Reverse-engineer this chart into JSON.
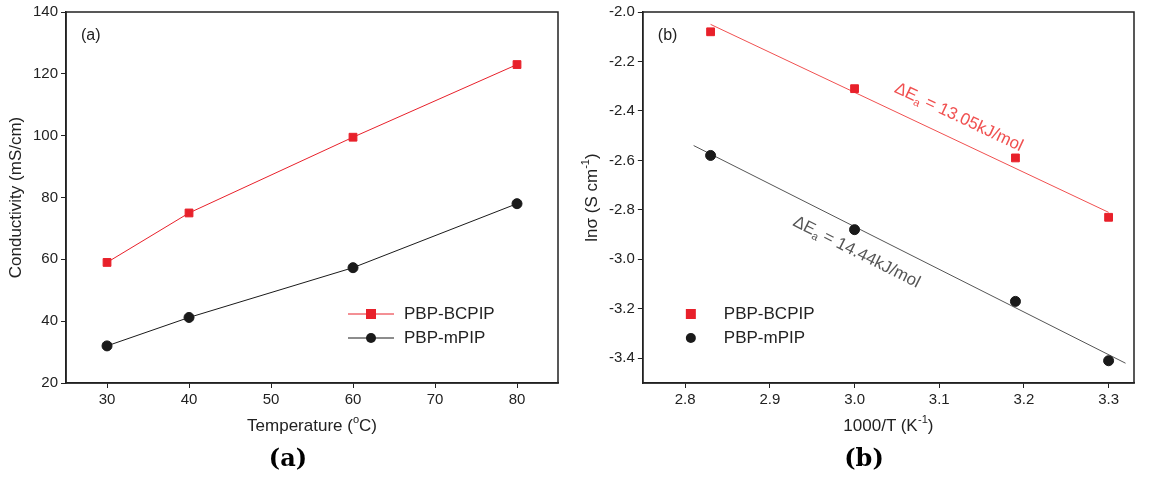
{
  "chart_data": [
    {
      "type": "line",
      "title": "(a)",
      "xlabel": "Temperature ($^{o}$C)",
      "ylabel": "Conductivity (mS/cm)",
      "x": [
        30,
        40,
        60,
        80
      ],
      "series": [
        {
          "name": "PBP-BCPIP",
          "color": "#e8202a",
          "marker": "square",
          "values": [
            59,
            75,
            99.5,
            123
          ]
        },
        {
          "name": "PBP-mPIP",
          "color": "#1a1a1a",
          "marker": "circle",
          "values": [
            32,
            41.2,
            57.3,
            78
          ]
        }
      ],
      "xlim": [
        25,
        85
      ],
      "xticks": [
        30,
        40,
        50,
        60,
        70,
        80
      ],
      "ylim": [
        20,
        140
      ],
      "yticks": [
        20,
        40,
        60,
        80,
        100,
        120,
        140
      ],
      "grid": false,
      "legend": "bottom right",
      "annotations": [
        "(a)"
      ]
    },
    {
      "type": "scatter",
      "title": "(b)",
      "xlabel": "1000/T (K$^{-1}$)",
      "ylabel": "lnσ (S cm$^{-1}$)",
      "x": [
        2.83,
        3.0,
        3.19,
        3.3
      ],
      "series": [
        {
          "name": "PBP-BCPIP",
          "color": "#e8202a",
          "marker": "square",
          "values": [
            -2.08,
            -2.31,
            -2.59,
            -2.83
          ]
        },
        {
          "name": "PBP-mPIP",
          "color": "#1a1a1a",
          "marker": "circle",
          "values": [
            -2.58,
            -2.88,
            -3.17,
            -3.41
          ]
        },
        {
          "type": "line",
          "color": "#f05050",
          "marker": "none",
          "x": [
            2.83,
            3.3
          ],
          "values": [
            -2.05,
            -2.81
          ]
        },
        {
          "type": "line",
          "color": "#555555",
          "marker": "none",
          "x": [
            2.81,
            3.32
          ],
          "values": [
            -2.54,
            -3.42
          ]
        }
      ],
      "xlim": [
        2.75,
        3.33
      ],
      "xticks": [
        {
          "value": 2.8,
          "label": "2.8"
        },
        {
          "value": 2.9,
          "label": "2.9"
        },
        {
          "value": 3.0,
          "label": "3.0"
        },
        {
          "value": 3.1,
          "label": "3.1"
        },
        {
          "value": 3.2,
          "label": "3.2"
        },
        {
          "value": 3.3,
          "label": "3.3"
        }
      ],
      "ylim": [
        -3.5,
        -2.0
      ],
      "yticks": [
        {
          "value": -3.4,
          "label": "-3.4"
        },
        {
          "value": -3.2,
          "label": "-3.2"
        },
        {
          "value": -3.0,
          "label": "-3.0"
        },
        {
          "value": -2.8,
          "label": "-2.8"
        },
        {
          "value": -2.6,
          "label": "-2.6"
        },
        {
          "value": -2.4,
          "label": "-2.4"
        },
        {
          "value": -2.2,
          "label": "-2.2"
        },
        {
          "value": -2.0,
          "label": "-2.0"
        }
      ],
      "grid": false,
      "legend": "bottom left",
      "annotations": [
        "ΔE$_{a}$ = 13.05kJ/mol",
        "ΔE$_{a}$ = 14.44kJ/mol",
        "(b)"
      ]
    }
  ]
}
